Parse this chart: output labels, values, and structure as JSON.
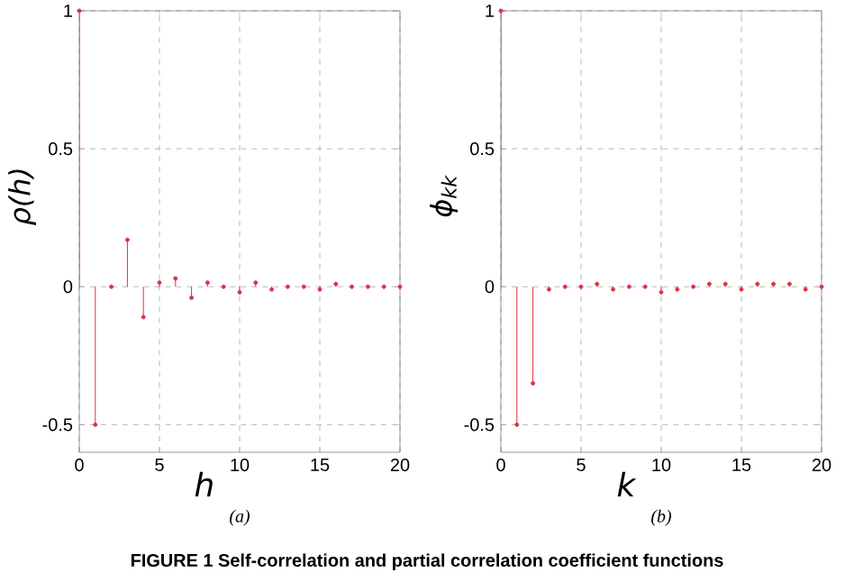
{
  "chart_data": [
    {
      "type": "lollipop",
      "title": "(a)",
      "xlabel": "h",
      "ylabel": "ρ(h)",
      "x": [
        0,
        1,
        2,
        3,
        4,
        5,
        6,
        7,
        8,
        9,
        10,
        11,
        12,
        13,
        14,
        15,
        16,
        17,
        18,
        19,
        20
      ],
      "series": [
        {
          "color": "#e03040",
          "values": [
            1,
            -0.5,
            0,
            0.17,
            -0.11,
            0.015,
            0.03,
            -0.04,
            0.015,
            0,
            -0.02,
            0.015,
            -0.01,
            0,
            0,
            -0.01,
            0.01,
            0,
            0,
            0,
            0
          ]
        }
      ],
      "xlim": [
        0,
        20
      ],
      "ylim": [
        -0.6,
        1
      ],
      "xticks": [
        0,
        5,
        10,
        15,
        20
      ],
      "yticks": [
        -0.5,
        0,
        0.5,
        1
      ],
      "grid": true,
      "marker": "circle",
      "annotations": [
        "FIGURE 1 Self-correlation and partial correlation coefficient functions"
      ]
    },
    {
      "type": "lollipop",
      "title": "(b)",
      "xlabel": "k",
      "ylabel": "ϕ$_{kk}$",
      "x": [
        0,
        1,
        2,
        3,
        4,
        5,
        6,
        7,
        8,
        9,
        10,
        11,
        12,
        13,
        14,
        15,
        16,
        17,
        18,
        19,
        20
      ],
      "series": [
        {
          "color": "#e03040",
          "values": [
            1,
            -0.5,
            -0.35,
            -0.01,
            0,
            0,
            0.01,
            -0.01,
            0,
            0,
            -0.02,
            -0.01,
            0,
            0.01,
            0.01,
            -0.01,
            0.01,
            0.01,
            0.01,
            -0.01,
            0
          ]
        }
      ],
      "xlim": [
        0,
        20
      ],
      "ylim": [
        -0.6,
        1
      ],
      "xticks": [
        0,
        5,
        10,
        15,
        20
      ],
      "yticks": [
        -0.5,
        0,
        0.5,
        1
      ],
      "grid": true,
      "marker": "circle"
    }
  ]
}
